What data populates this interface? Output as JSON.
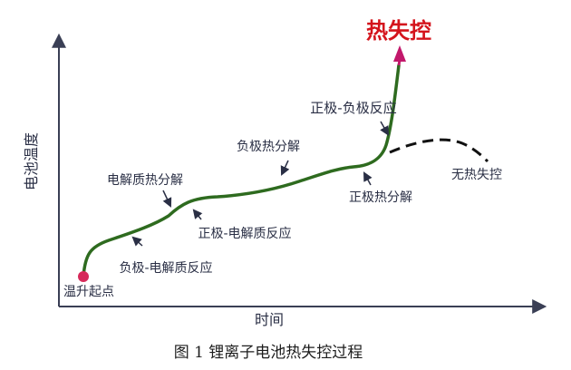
{
  "colors": {
    "axis": "#3a3f55",
    "curve": "#2e6b1f",
    "runaway_arrow": "#c2186b",
    "start_point": "#d62a5a",
    "dashed_curve": "#111111",
    "title": "#d4141c",
    "label": "#2a2f45"
  },
  "diagram": {
    "title": "热失控",
    "y_axis_label": "电池温度",
    "x_axis_label": "时间",
    "start_label": "温升起点",
    "no_runaway_label": "无热失控",
    "stages": [
      "负极-电解质反应",
      "电解质热分解",
      "正极-电解质反应",
      "负极热分解",
      "正极热分解",
      "正极-负极反应"
    ]
  },
  "caption": "图 1  锂离子电池热失控过程"
}
